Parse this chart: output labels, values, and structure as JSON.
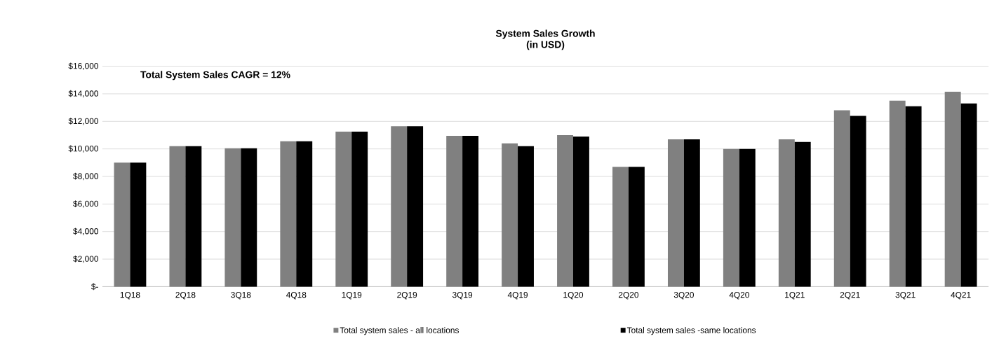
{
  "chart_data": {
    "type": "bar",
    "title": "System Sales Growth",
    "subtitle": "(in USD)",
    "annotations": [
      "Total System Sales CAGR = 12%"
    ],
    "categories": [
      "1Q18",
      "2Q18",
      "3Q18",
      "4Q18",
      "1Q19",
      "2Q19",
      "3Q19",
      "4Q19",
      "1Q20",
      "2Q20",
      "3Q20",
      "4Q20",
      "1Q21",
      "2Q21",
      "3Q21",
      "4Q21"
    ],
    "series": [
      {
        "name": "Total system sales - all locations",
        "color": "#808080",
        "values": [
          9000,
          10200,
          10050,
          10550,
          11250,
          11650,
          10950,
          10400,
          11000,
          8700,
          10700,
          10000,
          10700,
          12800,
          13500,
          14150
        ]
      },
      {
        "name": "Total system sales -same locations",
        "color": "#000000",
        "values": [
          9000,
          10200,
          10050,
          10550,
          11250,
          11650,
          10950,
          10200,
          10900,
          8700,
          10700,
          10000,
          10500,
          12400,
          13100,
          13300
        ]
      }
    ],
    "ylim": [
      0,
      16000
    ],
    "yticks": [
      {
        "value": 0,
        "label": "$-"
      },
      {
        "value": 2000,
        "label": "$2,000"
      },
      {
        "value": 4000,
        "label": "$4,000"
      },
      {
        "value": 6000,
        "label": "$6,000"
      },
      {
        "value": 8000,
        "label": "$8,000"
      },
      {
        "value": 10000,
        "label": "$10,000"
      },
      {
        "value": 12000,
        "label": "$12,000"
      },
      {
        "value": 14000,
        "label": "$14,000"
      },
      {
        "value": 16000,
        "label": "$16,000"
      }
    ],
    "grid": "y",
    "legend": "bottom"
  }
}
